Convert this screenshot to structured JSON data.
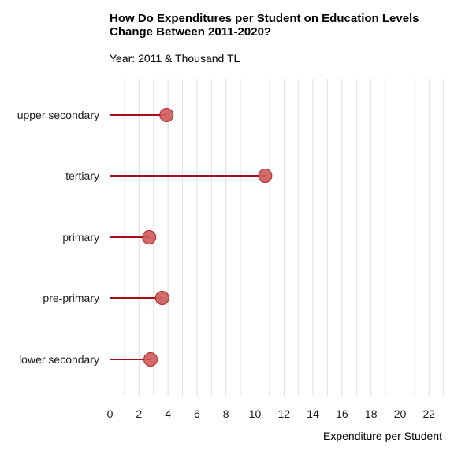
{
  "chart_data": {
    "type": "lollipop",
    "title": "How Do Expenditures per Student on Education Levels Change Between 2011-2020?",
    "subtitle": "Year: 2011 & Thousand TL",
    "xlabel": "Expenditure per Student",
    "ylabel": "",
    "xlim": [
      0,
      23
    ],
    "x_ticks": [
      "0",
      "2",
      "4",
      "6",
      "8",
      "10",
      "12",
      "14",
      "16",
      "18",
      "20",
      "22"
    ],
    "grid": "vertical",
    "categories": [
      "upper secondary",
      "tertiary",
      "primary",
      "pre-primary",
      "lower secondary"
    ],
    "values": [
      3.9,
      10.7,
      2.7,
      3.6,
      2.8
    ],
    "colors": {
      "stem": "#a50f15",
      "point": "#cd5c5c",
      "point_stroke": "#b22222",
      "grid": "#dcdcdc"
    }
  }
}
